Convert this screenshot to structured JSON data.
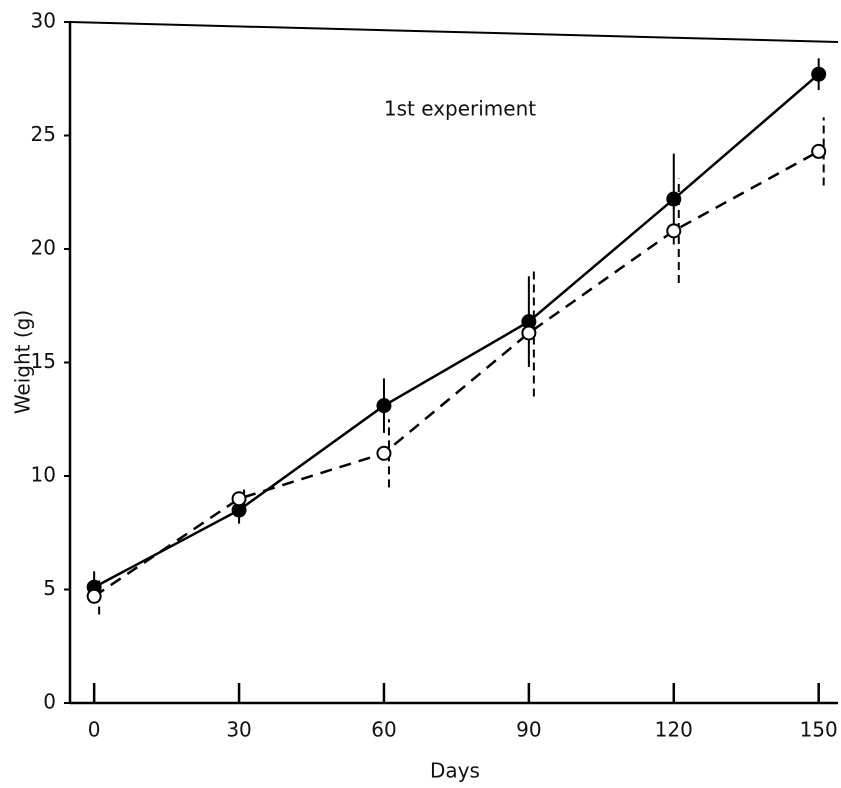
{
  "chart_data": {
    "type": "line",
    "annotation": "1st experiment",
    "xlabel": "Days",
    "ylabel": "Weight (g)",
    "x": [
      0,
      30,
      60,
      90,
      120,
      150
    ],
    "series": [
      {
        "color": "#000000",
        "linestyle": "solid",
        "marker": "filled",
        "values": [
          5.1,
          8.5,
          13.1,
          16.8,
          22.2,
          27.7
        ],
        "errors": [
          0.7,
          0.6,
          1.2,
          2.0,
          2.0,
          0.7
        ]
      },
      {
        "color": "#000000",
        "linestyle": "dashed",
        "marker": "open",
        "values": [
          4.7,
          9.0,
          11.0,
          16.3,
          20.8,
          24.3
        ],
        "errors": [
          0.8,
          0.4,
          1.5,
          2.8,
          2.3,
          1.5
        ]
      }
    ],
    "xlim": [
      -5,
      154
    ],
    "ylim": [
      0,
      30
    ],
    "xticks": [
      0,
      30,
      60,
      90,
      120,
      150
    ],
    "yticks": [
      0,
      5,
      10,
      15,
      20,
      25,
      30
    ]
  }
}
